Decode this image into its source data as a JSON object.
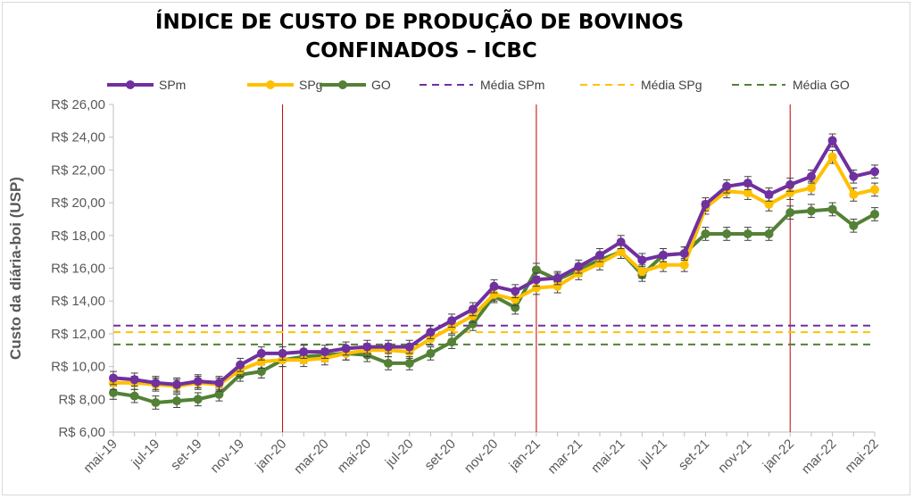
{
  "chart_data": {
    "type": "line",
    "title": [
      "ÍNDICE DE CUSTO DE PRODUÇÃO DE BOVINOS",
      "CONFINADOS – ICBC"
    ],
    "ylabel": "Custo da diária-boi (USP)",
    "xlabel": "",
    "ylim": [
      6,
      26
    ],
    "yticks": [
      "R$ 6,00",
      "R$ 8,00",
      "R$ 10,00",
      "R$ 12,00",
      "R$ 14,00",
      "R$ 16,00",
      "R$ 18,00",
      "R$ 20,00",
      "R$ 22,00",
      "R$ 24,00",
      "R$ 26,00"
    ],
    "ytick_values": [
      6,
      8,
      10,
      12,
      14,
      16,
      18,
      20,
      22,
      24,
      26
    ],
    "x": [
      "mai-19",
      "jun-19",
      "jul-19",
      "ago-19",
      "set-19",
      "out-19",
      "nov-19",
      "dez-19",
      "jan-20",
      "fev-20",
      "mar-20",
      "abr-20",
      "mai-20",
      "jun-20",
      "jul-20",
      "ago-20",
      "set-20",
      "out-20",
      "nov-20",
      "dez-20",
      "jan-21",
      "fev-21",
      "mar-21",
      "abr-21",
      "mai-21",
      "jun-21",
      "jul-21",
      "ago-21",
      "set-21",
      "out-21",
      "nov-21",
      "dez-21",
      "jan-22",
      "fev-22",
      "mar-22",
      "abr-22",
      "mai-22"
    ],
    "xtick_labels": [
      "mai-19",
      "jul-19",
      "set-19",
      "nov-19",
      "jan-20",
      "mar-20",
      "mai-20",
      "jul-20",
      "set-20",
      "nov-20",
      "jan-21",
      "mar-21",
      "mai-21",
      "jul-21",
      "set-21",
      "nov-21",
      "jan-22",
      "mar-22",
      "mai-22"
    ],
    "series": [
      {
        "name": "SPm",
        "color": "#7030a0",
        "style": "solid-marker",
        "values": [
          9.3,
          9.2,
          9.0,
          8.9,
          9.1,
          9.0,
          10.1,
          10.8,
          10.8,
          10.9,
          10.9,
          11.1,
          11.2,
          11.2,
          11.2,
          12.1,
          12.8,
          13.5,
          14.9,
          14.6,
          15.3,
          15.4,
          16.1,
          16.8,
          17.6,
          16.5,
          16.8,
          16.9,
          19.9,
          21.0,
          21.2,
          20.5,
          21.1,
          21.6,
          23.8,
          21.6,
          21.9
        ]
      },
      {
        "name": "SPg",
        "color": "#ffc000",
        "style": "solid-marker",
        "values": [
          9.0,
          9.0,
          8.9,
          8.8,
          9.0,
          8.9,
          9.8,
          10.3,
          10.4,
          10.4,
          10.5,
          10.8,
          11.0,
          11.0,
          10.9,
          11.7,
          12.4,
          13.1,
          14.4,
          14.1,
          14.8,
          14.9,
          15.7,
          16.3,
          17.0,
          15.8,
          16.2,
          16.2,
          19.7,
          20.7,
          20.6,
          19.9,
          20.6,
          20.9,
          22.8,
          20.5,
          20.8
        ]
      },
      {
        "name": "GO",
        "color": "#538135",
        "style": "solid-marker",
        "values": [
          8.4,
          8.2,
          7.8,
          7.9,
          8.0,
          8.3,
          9.5,
          9.7,
          10.4,
          10.6,
          10.7,
          10.8,
          10.7,
          10.2,
          10.2,
          10.8,
          11.5,
          12.6,
          14.3,
          13.6,
          15.9,
          15.3,
          15.9,
          16.5,
          17.0,
          15.6,
          16.8,
          16.9,
          18.1,
          18.1,
          18.1,
          18.1,
          19.4,
          19.5,
          19.6,
          18.6,
          19.3
        ]
      },
      {
        "name": "Média SPm",
        "color": "#7030a0",
        "style": "dashed",
        "value": 12.5
      },
      {
        "name": "Média SPg",
        "color": "#ffc000",
        "style": "dashed",
        "value": 12.1
      },
      {
        "name": "Média GO",
        "color": "#538135",
        "style": "dashed",
        "value": 11.35
      }
    ],
    "error_bar_halfwidth": 0.4,
    "vertical_markers": [
      "jan-20",
      "jan-21",
      "jan-22"
    ],
    "vertical_marker_color": "#c00000",
    "grid": false,
    "legend_position": "top"
  }
}
